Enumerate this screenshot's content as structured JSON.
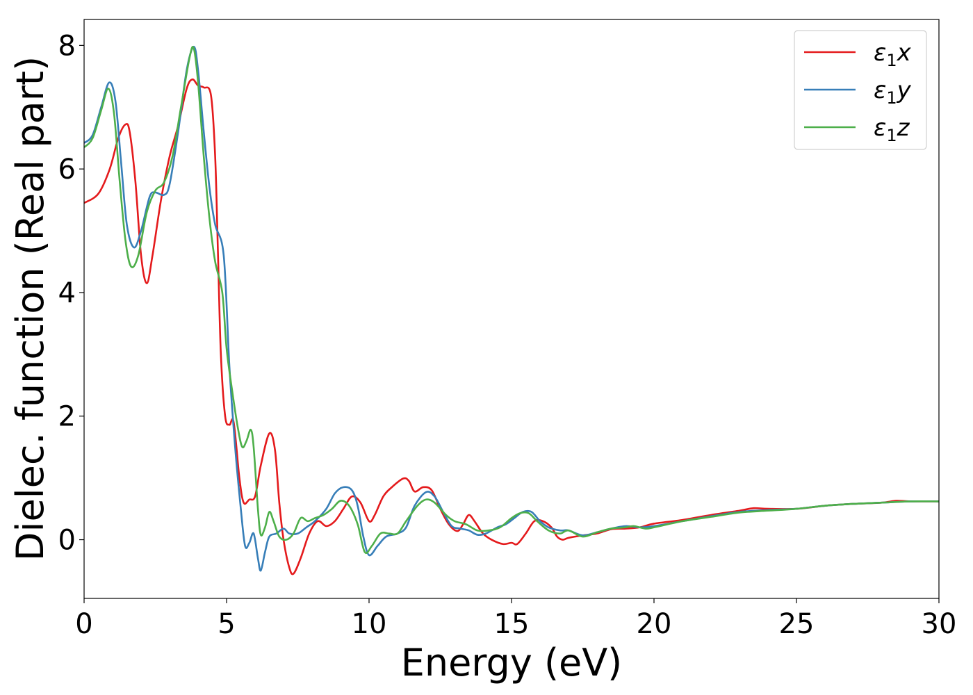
{
  "chart_data": {
    "type": "line",
    "title": "",
    "xlabel": "Energy (eV)",
    "ylabel": "Dielec. function (Real part)",
    "xlim": [
      0,
      30
    ],
    "ylim": [
      -0.95,
      8.42
    ],
    "xticks": [
      0,
      5,
      10,
      15,
      20,
      25,
      30
    ],
    "yticks": [
      0,
      2,
      4,
      6,
      8
    ],
    "grid": false,
    "legend_position": "top-right",
    "series": [
      {
        "name": "ε1x",
        "legend_base": "ε",
        "legend_sub": "1",
        "legend_suffix": "x",
        "color": "#e41a1c",
        "points": [
          [
            0,
            5.45
          ],
          [
            0.5,
            5.6
          ],
          [
            0.9,
            6.0
          ],
          [
            1.2,
            6.5
          ],
          [
            1.45,
            6.72
          ],
          [
            1.6,
            6.6
          ],
          [
            1.8,
            5.8
          ],
          [
            2.0,
            4.6
          ],
          [
            2.2,
            4.15
          ],
          [
            2.4,
            4.6
          ],
          [
            2.7,
            5.5
          ],
          [
            3.0,
            6.2
          ],
          [
            3.3,
            6.7
          ],
          [
            3.6,
            7.3
          ],
          [
            3.8,
            7.45
          ],
          [
            4.0,
            7.35
          ],
          [
            4.2,
            7.32
          ],
          [
            4.45,
            7.2
          ],
          [
            4.6,
            6.2
          ],
          [
            4.7,
            4.6
          ],
          [
            4.8,
            3.0
          ],
          [
            4.95,
            2.0
          ],
          [
            5.1,
            1.86
          ],
          [
            5.25,
            1.9
          ],
          [
            5.45,
            1.0
          ],
          [
            5.6,
            0.6
          ],
          [
            5.8,
            0.65
          ],
          [
            6.0,
            0.7
          ],
          [
            6.2,
            1.2
          ],
          [
            6.5,
            1.72
          ],
          [
            6.7,
            1.45
          ],
          [
            6.85,
            0.6
          ],
          [
            7.0,
            0.0
          ],
          [
            7.2,
            -0.45
          ],
          [
            7.35,
            -0.55
          ],
          [
            7.6,
            -0.3
          ],
          [
            7.9,
            0.1
          ],
          [
            8.2,
            0.3
          ],
          [
            8.5,
            0.22
          ],
          [
            8.8,
            0.3
          ],
          [
            9.1,
            0.5
          ],
          [
            9.4,
            0.7
          ],
          [
            9.7,
            0.6
          ],
          [
            10.0,
            0.3
          ],
          [
            10.2,
            0.4
          ],
          [
            10.5,
            0.7
          ],
          [
            10.8,
            0.85
          ],
          [
            11.2,
            0.99
          ],
          [
            11.4,
            0.95
          ],
          [
            11.6,
            0.78
          ],
          [
            11.9,
            0.85
          ],
          [
            12.2,
            0.8
          ],
          [
            12.5,
            0.5
          ],
          [
            12.8,
            0.25
          ],
          [
            13.1,
            0.14
          ],
          [
            13.3,
            0.25
          ],
          [
            13.5,
            0.4
          ],
          [
            13.7,
            0.3
          ],
          [
            14.0,
            0.1
          ],
          [
            14.3,
            0.0
          ],
          [
            14.7,
            -0.07
          ],
          [
            15.0,
            -0.05
          ],
          [
            15.2,
            -0.07
          ],
          [
            15.5,
            0.1
          ],
          [
            15.8,
            0.3
          ],
          [
            16.1,
            0.3
          ],
          [
            16.4,
            0.2
          ],
          [
            16.6,
            0.05
          ],
          [
            16.8,
            0.0
          ],
          [
            17.0,
            0.03
          ],
          [
            17.5,
            0.07
          ],
          [
            18.0,
            0.1
          ],
          [
            18.5,
            0.17
          ],
          [
            19.0,
            0.18
          ],
          [
            19.5,
            0.2
          ],
          [
            20.0,
            0.26
          ],
          [
            21.0,
            0.32
          ],
          [
            22.0,
            0.4
          ],
          [
            23.0,
            0.47
          ],
          [
            23.5,
            0.51
          ],
          [
            24.0,
            0.5
          ],
          [
            25.0,
            0.5
          ],
          [
            26.0,
            0.55
          ],
          [
            27.0,
            0.58
          ],
          [
            28.0,
            0.6
          ],
          [
            28.5,
            0.63
          ],
          [
            29.0,
            0.62
          ],
          [
            30.0,
            0.62
          ]
        ]
      },
      {
        "name": "ε1y",
        "legend_base": "ε",
        "legend_sub": "1",
        "legend_suffix": "y",
        "color": "#377eb8",
        "points": [
          [
            0,
            6.42
          ],
          [
            0.3,
            6.55
          ],
          [
            0.6,
            7.0
          ],
          [
            0.88,
            7.4
          ],
          [
            1.1,
            7.1
          ],
          [
            1.3,
            6.1
          ],
          [
            1.5,
            5.1
          ],
          [
            1.75,
            4.73
          ],
          [
            2.0,
            5.0
          ],
          [
            2.3,
            5.55
          ],
          [
            2.5,
            5.62
          ],
          [
            2.8,
            5.58
          ],
          [
            3.0,
            5.75
          ],
          [
            3.3,
            6.6
          ],
          [
            3.6,
            7.6
          ],
          [
            3.85,
            7.98
          ],
          [
            4.0,
            7.6
          ],
          [
            4.2,
            6.6
          ],
          [
            4.4,
            5.7
          ],
          [
            4.6,
            5.1
          ],
          [
            4.9,
            4.6
          ],
          [
            5.1,
            2.8
          ],
          [
            5.3,
            1.5
          ],
          [
            5.5,
            0.5
          ],
          [
            5.65,
            -0.1
          ],
          [
            5.8,
            -0.05
          ],
          [
            5.95,
            0.1
          ],
          [
            6.1,
            -0.3
          ],
          [
            6.2,
            -0.5
          ],
          [
            6.35,
            -0.2
          ],
          [
            6.5,
            0.05
          ],
          [
            6.75,
            0.1
          ],
          [
            7.0,
            0.18
          ],
          [
            7.2,
            0.1
          ],
          [
            7.5,
            0.1
          ],
          [
            7.8,
            0.2
          ],
          [
            8.1,
            0.3
          ],
          [
            8.5,
            0.5
          ],
          [
            8.8,
            0.75
          ],
          [
            9.1,
            0.85
          ],
          [
            9.4,
            0.8
          ],
          [
            9.6,
            0.55
          ],
          [
            9.8,
            0.05
          ],
          [
            10.0,
            -0.25
          ],
          [
            10.3,
            -0.1
          ],
          [
            10.6,
            0.05
          ],
          [
            11.0,
            0.1
          ],
          [
            11.3,
            0.2
          ],
          [
            11.6,
            0.55
          ],
          [
            12.0,
            0.77
          ],
          [
            12.3,
            0.7
          ],
          [
            12.6,
            0.45
          ],
          [
            12.9,
            0.22
          ],
          [
            13.2,
            0.18
          ],
          [
            13.5,
            0.15
          ],
          [
            13.8,
            0.08
          ],
          [
            14.1,
            0.1
          ],
          [
            14.5,
            0.2
          ],
          [
            14.8,
            0.25
          ],
          [
            15.1,
            0.35
          ],
          [
            15.4,
            0.45
          ],
          [
            15.7,
            0.45
          ],
          [
            16.0,
            0.3
          ],
          [
            16.3,
            0.2
          ],
          [
            16.7,
            0.15
          ],
          [
            17.0,
            0.15
          ],
          [
            17.5,
            0.07
          ],
          [
            18.0,
            0.12
          ],
          [
            18.5,
            0.18
          ],
          [
            19.0,
            0.22
          ],
          [
            19.5,
            0.2
          ],
          [
            20.0,
            0.22
          ],
          [
            21.0,
            0.3
          ],
          [
            22.0,
            0.38
          ],
          [
            23.0,
            0.45
          ],
          [
            24.0,
            0.48
          ],
          [
            25.0,
            0.5
          ],
          [
            26.0,
            0.55
          ],
          [
            27.0,
            0.58
          ],
          [
            28.0,
            0.6
          ],
          [
            29.0,
            0.62
          ],
          [
            30.0,
            0.62
          ]
        ]
      },
      {
        "name": "ε1z",
        "legend_base": "ε",
        "legend_sub": "1",
        "legend_suffix": "z",
        "color": "#4daf4a",
        "points": [
          [
            0,
            6.35
          ],
          [
            0.3,
            6.5
          ],
          [
            0.6,
            6.95
          ],
          [
            0.85,
            7.3
          ],
          [
            1.05,
            6.9
          ],
          [
            1.25,
            5.8
          ],
          [
            1.45,
            4.85
          ],
          [
            1.65,
            4.42
          ],
          [
            1.9,
            4.6
          ],
          [
            2.2,
            5.3
          ],
          [
            2.5,
            5.65
          ],
          [
            2.8,
            5.78
          ],
          [
            3.1,
            6.2
          ],
          [
            3.4,
            7.0
          ],
          [
            3.7,
            7.8
          ],
          [
            3.85,
            7.95
          ],
          [
            4.0,
            7.4
          ],
          [
            4.2,
            6.2
          ],
          [
            4.4,
            5.2
          ],
          [
            4.6,
            4.5
          ],
          [
            4.85,
            4.0
          ],
          [
            5.0,
            3.1
          ],
          [
            5.2,
            2.4
          ],
          [
            5.4,
            1.8
          ],
          [
            5.55,
            1.5
          ],
          [
            5.7,
            1.6
          ],
          [
            5.85,
            1.78
          ],
          [
            5.95,
            1.5
          ],
          [
            6.1,
            0.5
          ],
          [
            6.2,
            0.08
          ],
          [
            6.35,
            0.2
          ],
          [
            6.5,
            0.45
          ],
          [
            6.65,
            0.3
          ],
          [
            6.85,
            0.05
          ],
          [
            7.1,
            0.0
          ],
          [
            7.35,
            0.1
          ],
          [
            7.6,
            0.35
          ],
          [
            7.85,
            0.3
          ],
          [
            8.1,
            0.35
          ],
          [
            8.4,
            0.4
          ],
          [
            8.7,
            0.5
          ],
          [
            9.0,
            0.63
          ],
          [
            9.3,
            0.55
          ],
          [
            9.6,
            0.25
          ],
          [
            9.85,
            -0.2
          ],
          [
            10.1,
            -0.1
          ],
          [
            10.4,
            0.1
          ],
          [
            10.7,
            0.1
          ],
          [
            11.0,
            0.1
          ],
          [
            11.3,
            0.3
          ],
          [
            11.7,
            0.55
          ],
          [
            12.0,
            0.65
          ],
          [
            12.3,
            0.6
          ],
          [
            12.7,
            0.4
          ],
          [
            13.0,
            0.3
          ],
          [
            13.4,
            0.25
          ],
          [
            13.8,
            0.15
          ],
          [
            14.2,
            0.15
          ],
          [
            14.6,
            0.2
          ],
          [
            15.0,
            0.35
          ],
          [
            15.3,
            0.43
          ],
          [
            15.6,
            0.43
          ],
          [
            15.9,
            0.3
          ],
          [
            16.3,
            0.15
          ],
          [
            16.7,
            0.1
          ],
          [
            17.0,
            0.15
          ],
          [
            17.5,
            0.05
          ],
          [
            18.0,
            0.12
          ],
          [
            18.5,
            0.18
          ],
          [
            19.0,
            0.2
          ],
          [
            19.3,
            0.22
          ],
          [
            19.7,
            0.18
          ],
          [
            20.0,
            0.2
          ],
          [
            21.0,
            0.3
          ],
          [
            22.0,
            0.37
          ],
          [
            23.0,
            0.44
          ],
          [
            24.0,
            0.47
          ],
          [
            25.0,
            0.5
          ],
          [
            26.0,
            0.55
          ],
          [
            27.0,
            0.58
          ],
          [
            28.0,
            0.6
          ],
          [
            29.0,
            0.62
          ],
          [
            30.0,
            0.62
          ]
        ]
      }
    ]
  }
}
